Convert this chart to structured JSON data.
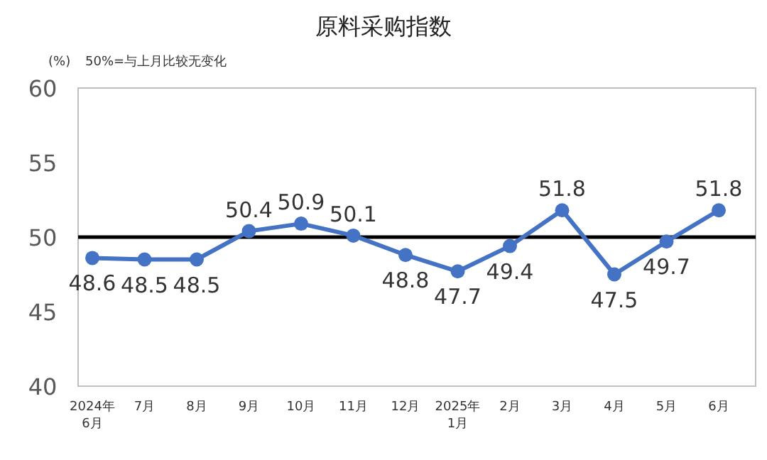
{
  "chart_data": {
    "type": "line",
    "title": "原料采购指数",
    "annotations": [
      "(%)",
      "50%=与上月比较无变化"
    ],
    "categories": [
      "2024年\n6月",
      "7月",
      "8月",
      "9月",
      "10月",
      "11月",
      "12月",
      "2025年\n1月",
      "2月",
      "3月",
      "4月",
      "5月",
      "6月"
    ],
    "series": [
      {
        "color": "#4472c4",
        "values": [
          48.6,
          48.5,
          48.5,
          50.4,
          50.9,
          50.1,
          48.8,
          47.7,
          49.4,
          51.8,
          47.5,
          49.7,
          51.8
        ]
      }
    ],
    "ylim": [
      40,
      60
    ],
    "yticks": [
      40,
      45,
      50,
      55,
      60
    ],
    "ref_lines": [
      {
        "axis": "y",
        "value": 50,
        "color": "#000000"
      }
    ],
    "data_labels": true,
    "marker": "circle",
    "line_style": "solid",
    "grid": false
  }
}
